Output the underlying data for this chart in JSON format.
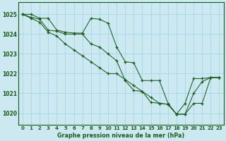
{
  "title": "Graphe pression niveau de la mer (hPa)",
  "bg_color": "#cce8f0",
  "grid_color": "#aad8e8",
  "line_color": "#1a5c1a",
  "xlim": [
    -0.5,
    23.5
  ],
  "ylim": [
    1019.4,
    1025.6
  ],
  "yticks": [
    1020,
    1021,
    1022,
    1023,
    1024,
    1025
  ],
  "xticks": [
    0,
    1,
    2,
    3,
    4,
    5,
    6,
    7,
    8,
    9,
    10,
    11,
    12,
    13,
    14,
    15,
    16,
    17,
    18,
    19,
    20,
    21,
    22,
    23
  ],
  "series1": [
    1025.0,
    1025.0,
    1024.8,
    1024.8,
    1024.2,
    1024.1,
    1024.05,
    1024.05,
    1024.8,
    1024.75,
    1024.55,
    1023.35,
    1022.6,
    1022.55,
    1021.65,
    1021.65,
    1021.65,
    1020.5,
    1019.95,
    1020.5,
    1021.75,
    1021.75,
    1021.8,
    1021.8
  ],
  "series2": [
    1025.0,
    1024.85,
    1024.75,
    1024.2,
    1024.15,
    1024.0,
    1024.0,
    1024.0,
    1023.5,
    1023.35,
    1023.0,
    1022.65,
    1021.65,
    1021.15,
    1021.1,
    1020.55,
    1020.5,
    1020.45,
    1019.95,
    1019.95,
    1021.0,
    1021.6,
    1021.8,
    1021.8
  ],
  "series3": [
    1025.0,
    1024.8,
    1024.6,
    1024.1,
    1023.9,
    1023.5,
    1023.2,
    1022.9,
    1022.6,
    1022.3,
    1022.0,
    1022.0,
    1021.7,
    1021.4,
    1021.1,
    1020.8,
    1020.5,
    1020.45,
    1019.95,
    1019.95,
    1020.5,
    1020.5,
    1021.8,
    1021.8
  ]
}
